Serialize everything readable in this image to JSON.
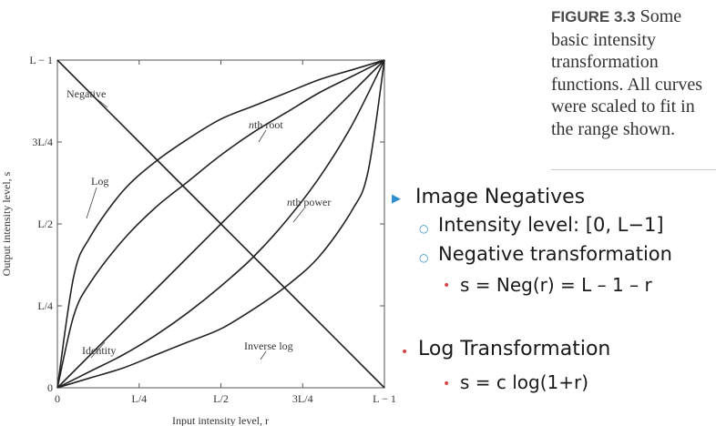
{
  "chart_data": {
    "type": "line",
    "xlabel": "Input intensity level, r",
    "ylabel": "Output intensity level, s",
    "xlim": [
      0,
      1
    ],
    "ylim": [
      0,
      1
    ],
    "x_ticks": [
      {
        "value": 0,
        "label": "0"
      },
      {
        "value": 0.25,
        "label": "L/4"
      },
      {
        "value": 0.5,
        "label": "L/2"
      },
      {
        "value": 0.75,
        "label": "3L/4"
      },
      {
        "value": 1,
        "label": "L − 1"
      }
    ],
    "y_ticks": [
      {
        "value": 0,
        "label": "0"
      },
      {
        "value": 0.25,
        "label": "L/4"
      },
      {
        "value": 0.5,
        "label": "L/2"
      },
      {
        "value": 0.75,
        "label": "3L/4"
      },
      {
        "value": 1,
        "label": "L − 1"
      }
    ],
    "series": [
      {
        "name": "Negative",
        "x": [
          0,
          0.25,
          0.5,
          0.75,
          1
        ],
        "y": [
          1,
          0.75,
          0.5,
          0.25,
          0
        ]
      },
      {
        "name": "Log",
        "x": [
          0,
          0.05,
          0.1,
          0.2,
          0.3,
          0.4,
          0.5,
          0.6,
          0.7,
          0.8,
          0.9,
          1
        ],
        "y": [
          0,
          0.34,
          0.46,
          0.6,
          0.69,
          0.76,
          0.82,
          0.86,
          0.9,
          0.94,
          0.97,
          1
        ]
      },
      {
        "name": "nth root",
        "x": [
          0,
          0.05,
          0.1,
          0.2,
          0.3,
          0.4,
          0.5,
          0.6,
          0.7,
          0.8,
          0.9,
          1
        ],
        "y": [
          0,
          0.22,
          0.32,
          0.45,
          0.55,
          0.63,
          0.71,
          0.78,
          0.84,
          0.9,
          0.95,
          1
        ]
      },
      {
        "name": "Identity",
        "x": [
          0,
          0.25,
          0.5,
          0.75,
          1
        ],
        "y": [
          0,
          0.25,
          0.5,
          0.75,
          1
        ]
      },
      {
        "name": "nth power",
        "x": [
          0,
          0.1,
          0.2,
          0.3,
          0.4,
          0.5,
          0.6,
          0.7,
          0.8,
          0.9,
          1
        ],
        "y": [
          0,
          0.05,
          0.1,
          0.16,
          0.23,
          0.31,
          0.4,
          0.51,
          0.64,
          0.8,
          1
        ]
      },
      {
        "name": "Inverse log",
        "x": [
          0,
          0.1,
          0.2,
          0.3,
          0.4,
          0.5,
          0.6,
          0.7,
          0.8,
          0.9,
          0.95,
          1
        ],
        "y": [
          0,
          0.03,
          0.06,
          0.1,
          0.14,
          0.18,
          0.24,
          0.31,
          0.4,
          0.54,
          0.66,
          1
        ]
      }
    ],
    "grid": false,
    "legend": "none"
  },
  "caption": {
    "figure_label": "FIGURE 3.3",
    "text": "Some basic intensity transformation functions. All curves were scaled to fit in the range shown."
  },
  "bullets": {
    "image_negatives": "Image Negatives",
    "intensity_level": "Intensity level: [0, L−1]",
    "negative_transformation": "Negative transformation",
    "negative_formula": "s = Neg(r) = L – 1 – r",
    "log_transformation": "Log Transformation",
    "log_formula": "s = c log(1+r)"
  },
  "colors": {
    "triangle_bullet": "#2f8fd0",
    "ring_bullet": "#2f8fd0",
    "dot_bullet": "#d64545",
    "curve": "#222222"
  }
}
